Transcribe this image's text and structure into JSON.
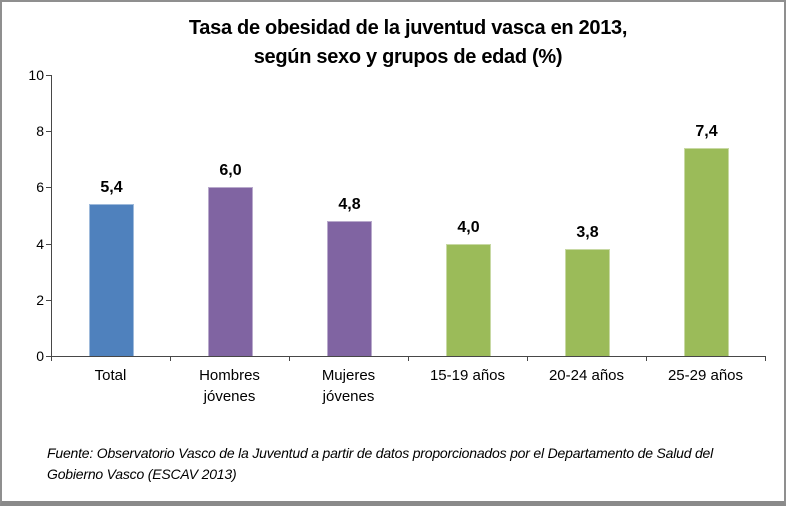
{
  "chart_data": {
    "type": "bar",
    "title": "Tasa de obesidad de la juventud vasca en 2013, según sexo y grupos de edad (%)",
    "title_lines": [
      "Tasa de obesidad de la juventud vasca en 2013,",
      "según sexo y grupos de edad (%)"
    ],
    "categories": [
      "Total",
      "Hombres jóvenes",
      "Mujeres jóvenes",
      "15-19 años",
      "20-24 años",
      "25-29 años"
    ],
    "category_display": [
      "Total",
      "Hombres\njóvenes",
      "Mujeres\njóvenes",
      "15-19 años",
      "20-24 años",
      "25-29 años"
    ],
    "values": [
      5.4,
      6.0,
      4.8,
      4.0,
      3.8,
      7.4
    ],
    "value_labels": [
      "5,4",
      "6,0",
      "4,8",
      "4,0",
      "3,8",
      "7,4"
    ],
    "bar_colors": [
      "#4F81BD",
      "#8064A2",
      "#8064A2",
      "#9BBB59",
      "#9BBB59",
      "#9BBB59"
    ],
    "xlabel": "",
    "ylabel": "",
    "ylim": [
      0,
      10
    ],
    "yticks": [
      0,
      2,
      4,
      6,
      8,
      10
    ],
    "grid": false,
    "legend": "none",
    "axis_color": "#474747",
    "source_note": "Fuente: Observatorio Vasco de la Juventud a partir de datos proporcionados por el Departamento de Salud del Gobierno Vasco (ESCAV 2013)"
  }
}
